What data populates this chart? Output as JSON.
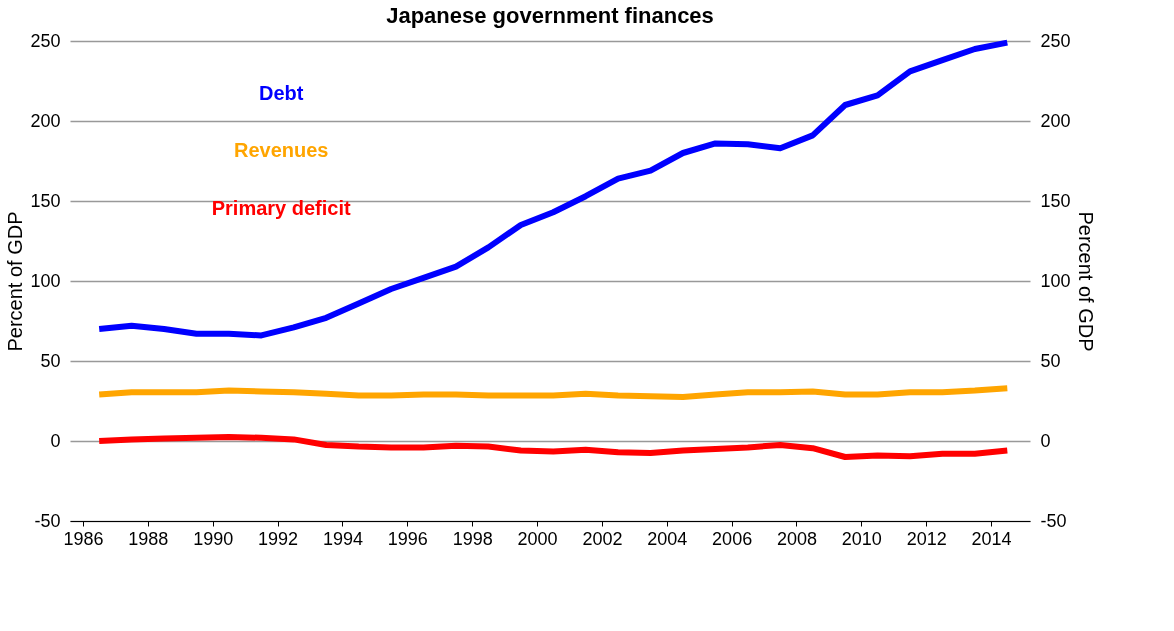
{
  "chart_data": {
    "type": "line",
    "title": "Japanese government finances",
    "ylabel": "Percent of GDP",
    "y2label": "Percent of GDP",
    "x": [
      1986.5,
      1987.5,
      1988.5,
      1989.5,
      1990.5,
      1991.5,
      1992.5,
      1993.5,
      1994.5,
      1995.5,
      1996.5,
      1997.5,
      1998.5,
      1999.5,
      2000.5,
      2001.5,
      2002.5,
      2003.5,
      2004.5,
      2005.5,
      2006.5,
      2007.5,
      2008.5,
      2009.5,
      2010.5,
      2011.5,
      2012.5,
      2013.5,
      2014.5
    ],
    "series": [
      {
        "name": "Debt",
        "color": "#0000ff",
        "values": [
          70,
          72,
          70,
          67,
          67,
          66,
          71,
          77,
          86,
          95,
          102,
          109,
          121,
          135,
          143,
          153,
          164,
          169,
          180,
          186,
          185.5,
          183,
          191,
          210,
          216,
          231,
          238,
          245,
          249
        ]
      },
      {
        "name": "Revenues",
        "color": "#ffa500",
        "values": [
          29,
          30.5,
          30.5,
          30.5,
          31.5,
          31,
          30.5,
          29.5,
          28.5,
          28.5,
          29,
          29,
          28.5,
          28.5,
          28.5,
          29.5,
          28.5,
          28,
          27.5,
          29,
          30.5,
          30.5,
          31,
          29,
          29,
          30.5,
          30.5,
          31.5,
          33
        ]
      },
      {
        "name": "Primary deficit",
        "color": "#ff0000",
        "values": [
          0,
          1,
          1.5,
          2,
          2.5,
          2,
          1,
          -2.5,
          -3.5,
          -4,
          -4,
          -3,
          -3.5,
          -6,
          -6.5,
          -5.5,
          -7,
          -7.5,
          -6,
          -5,
          -4,
          -2.5,
          -4.5,
          -10,
          -9,
          -9.5,
          -8,
          -8,
          -6
        ]
      }
    ],
    "xlim": [
      1985.6,
      2015.2
    ],
    "xticks": [
      1986,
      1988,
      1990,
      1992,
      1994,
      1996,
      1998,
      2000,
      2002,
      2004,
      2006,
      2008,
      2010,
      2012,
      2014
    ],
    "ylim": [
      -50,
      250
    ],
    "yticks": [
      -50,
      0,
      50,
      100,
      150,
      200,
      250
    ],
    "y2lim": [
      -50,
      250
    ],
    "y2ticks": [
      -50,
      0,
      50,
      100,
      150,
      200,
      250
    ],
    "grid": "y",
    "legend": "top left",
    "line_style": "solid",
    "marker": "none"
  }
}
